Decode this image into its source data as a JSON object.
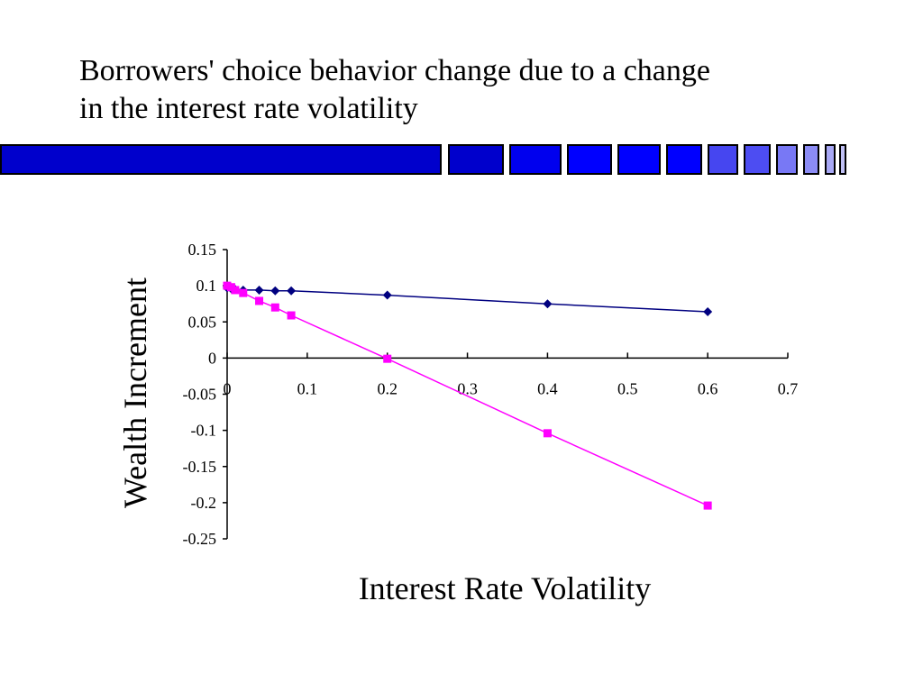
{
  "slide": {
    "title_line1": "Borrowers' choice behavior change due to a change",
    "title_line2": "in the interest rate volatility"
  },
  "colors": {
    "bar_primary": "#0000CC",
    "bar_blocks": [
      "#0000CC",
      "#0000EE",
      "#0000FF",
      "#0000FF",
      "#0000FF",
      "#4646F0",
      "#4D4DF2",
      "#7878F5",
      "#8C8CF5",
      "#A8A8F5",
      "#C0C0F5"
    ],
    "series1": "#000080",
    "series2": "#FF00FF"
  },
  "chart_data": {
    "type": "line",
    "title": "",
    "xlabel": "Interest Rate Volatility",
    "ylabel": "Wealth Increment",
    "xlim": [
      0,
      0.7
    ],
    "ylim": [
      -0.25,
      0.15
    ],
    "xticks": [
      "0",
      "0.1",
      "0.2",
      "0.3",
      "0.4",
      "0.5",
      "0.6",
      "0.7"
    ],
    "yticks": [
      "0.15",
      "0.1",
      "0.05",
      "0",
      "-0.05",
      "-0.1",
      "-0.15",
      "-0.2",
      "-0.25"
    ],
    "grid": false,
    "legend": "none",
    "series": [
      {
        "marker": "diamond",
        "color": "#000080",
        "x": [
          0,
          0.005,
          0.01,
          0.02,
          0.04,
          0.06,
          0.08,
          0.2,
          0.4,
          0.6
        ],
        "y": [
          0.097,
          0.096,
          0.095,
          0.094,
          0.094,
          0.093,
          0.093,
          0.087,
          0.075,
          0.064
        ]
      },
      {
        "marker": "square",
        "color": "#FF00FF",
        "x": [
          0,
          0.005,
          0.01,
          0.02,
          0.04,
          0.06,
          0.08,
          0.2,
          0.4,
          0.6
        ],
        "y": [
          0.1,
          0.098,
          0.094,
          0.09,
          0.079,
          0.07,
          0.059,
          -0.001,
          -0.104,
          -0.204
        ]
      }
    ]
  }
}
